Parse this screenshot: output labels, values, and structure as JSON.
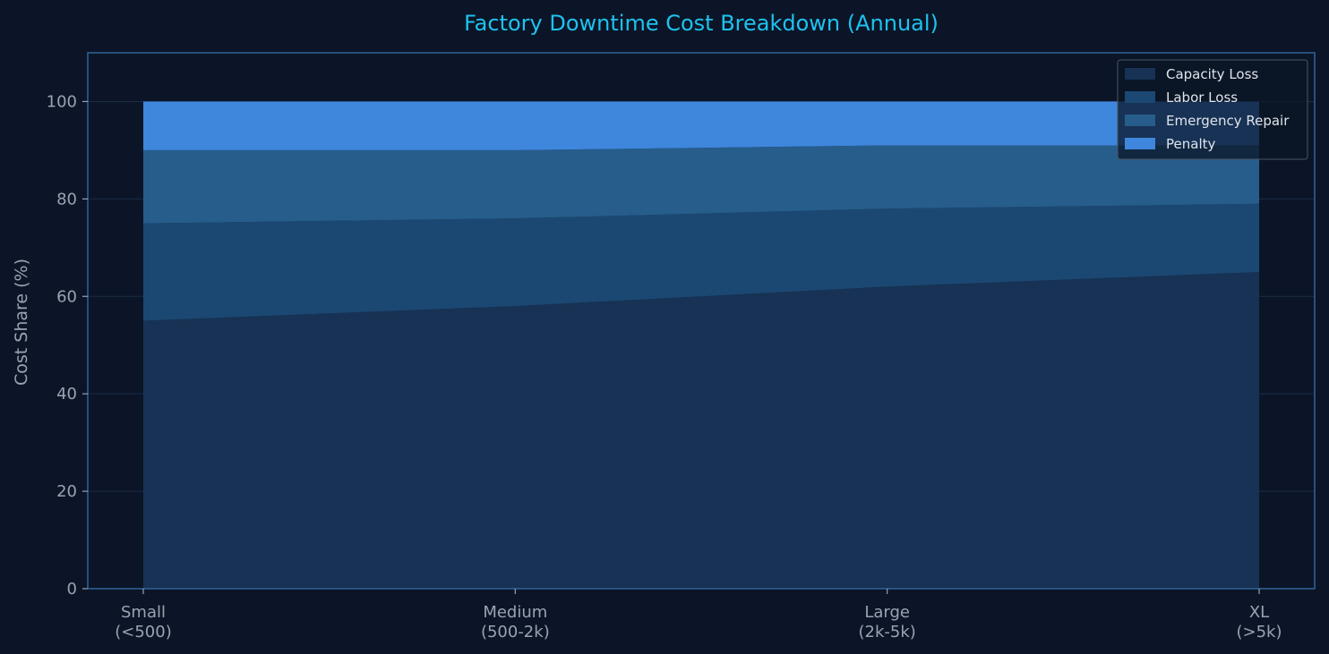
{
  "chart_data": {
    "type": "area",
    "stacked": true,
    "title": "Factory Downtime Cost Breakdown (Annual)",
    "xlabel": "",
    "ylabel": "Cost Share (%)",
    "categories": [
      "Small\n(<500)",
      "Medium\n(500-2k)",
      "Large\n(2k-5k)",
      "XL\n(>5k)"
    ],
    "series": [
      {
        "name": "Capacity Loss",
        "values": [
          55,
          58,
          62,
          65
        ],
        "color": "#173254"
      },
      {
        "name": "Labor Loss",
        "values": [
          20,
          18,
          16,
          14
        ],
        "color": "#1b4872"
      },
      {
        "name": "Emergency Repair",
        "values": [
          15,
          14,
          13,
          12
        ],
        "color": "#265d8b"
      },
      {
        "name": "Penalty",
        "values": [
          10,
          10,
          9,
          9
        ],
        "color": "#3f86dd"
      }
    ],
    "ylim": [
      0,
      110
    ],
    "yticks": [
      0,
      20,
      40,
      60,
      80,
      100
    ],
    "grid": true,
    "legend": "top-right",
    "colors": {
      "background": "#0b1527",
      "frame": "#2e5f93",
      "grid": "#1a2c47",
      "title": "#1ec2ee",
      "tick_text": "#9aa3b0"
    }
  }
}
